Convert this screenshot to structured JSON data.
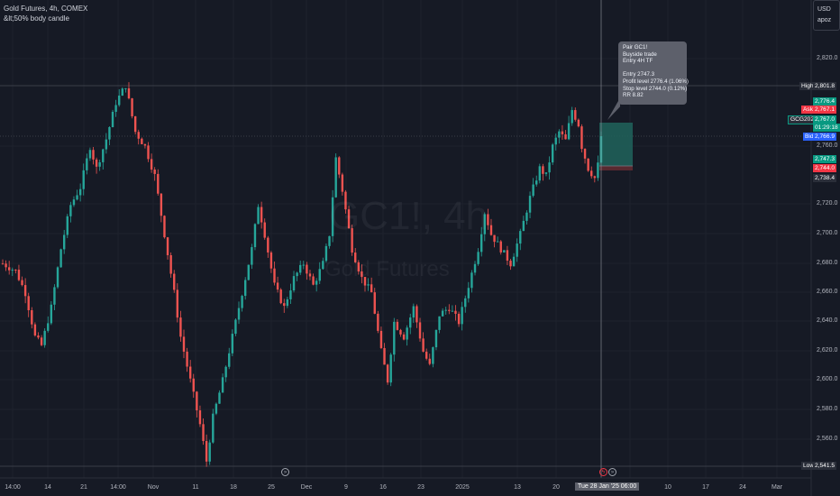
{
  "header": {
    "title": "Gold Futures, 4h, COMEX",
    "subtitle": "&lt;50% body candle"
  },
  "currency_box": {
    "currency": "USD",
    "user": "apoz"
  },
  "watermark": {
    "symbol": "GC1!, 4h",
    "name": "Gold Futures"
  },
  "trade_note": {
    "lines": [
      "Pair GC1!",
      "Buyside trade",
      "Entry 4H TF",
      "",
      "Entry 2747.3",
      "Profit level 2776.4 (1.06%)",
      "Stop level 2744.0 (0.12%)",
      "RR 8.82"
    ]
  },
  "price_axis": {
    "ticks": [
      "2,820.0",
      "2,760.0",
      "2,720.0",
      "2,700.0",
      "2,680.0",
      "2,660.0",
      "2,640.0",
      "2,620.0",
      "2,600.0",
      "2,580.0",
      "2,560.0"
    ],
    "labels": {
      "high": {
        "tag": "High",
        "value": "2,801.8"
      },
      "profit": "2,776.4",
      "ask": {
        "tag": "Ask",
        "value": "2,767.1"
      },
      "symbol": {
        "tag": "GCG2025",
        "value": "2,767.0",
        "countdown": "01:29:18"
      },
      "bid": {
        "tag": "Bid",
        "value": "2,766.9"
      },
      "entry": "2,747.3",
      "stop": "2,744.0",
      "last": "2,738.4",
      "low": {
        "tag": "Low",
        "value": "2,541.5"
      }
    }
  },
  "time_axis": {
    "ticks": [
      "14:00",
      "14",
      "21",
      "14:00",
      "Nov",
      "11",
      "18",
      "25",
      "Dec",
      "9",
      "16",
      "23",
      "2025",
      "13",
      "20",
      "6",
      "10",
      "17",
      "24",
      "Mar"
    ],
    "cursor_label": "Tue 28 Jan '25   06:00"
  },
  "colors": {
    "up": "#26a69a",
    "down": "#ef5350",
    "background": "#161a25",
    "profit_zone": "#1f5f59",
    "stop_zone": "#5c2a30"
  },
  "chart_data": {
    "type": "candlestick",
    "symbol": "GC1!",
    "timeframe": "4h",
    "ylim": [
      2541.5,
      2830
    ],
    "price_path": [
      [
        0,
        2680
      ],
      [
        4,
        2675
      ],
      [
        7,
        2660
      ],
      [
        10,
        2630
      ],
      [
        12,
        2624
      ],
      [
        15,
        2650
      ],
      [
        18,
        2690
      ],
      [
        21,
        2720
      ],
      [
        24,
        2732
      ],
      [
        27,
        2760
      ],
      [
        29,
        2745
      ],
      [
        32,
        2765
      ],
      [
        35,
        2790
      ],
      [
        38,
        2801.8
      ],
      [
        41,
        2770
      ],
      [
        44,
        2760
      ],
      [
        47,
        2740
      ],
      [
        50,
        2700
      ],
      [
        53,
        2660
      ],
      [
        55,
        2630
      ],
      [
        58,
        2600
      ],
      [
        61,
        2570
      ],
      [
        63,
        2545
      ],
      [
        65,
        2575
      ],
      [
        68,
        2600
      ],
      [
        71,
        2630
      ],
      [
        74,
        2660
      ],
      [
        77,
        2690
      ],
      [
        79,
        2720
      ],
      [
        81,
        2700
      ],
      [
        84,
        2665
      ],
      [
        87,
        2650
      ],
      [
        90,
        2670
      ],
      [
        93,
        2680
      ],
      [
        96,
        2665
      ],
      [
        99,
        2680
      ],
      [
        101,
        2700
      ],
      [
        103,
        2752
      ],
      [
        105,
        2730
      ],
      [
        108,
        2690
      ],
      [
        111,
        2670
      ],
      [
        114,
        2660
      ],
      [
        117,
        2620
      ],
      [
        119,
        2600
      ],
      [
        121,
        2640
      ],
      [
        124,
        2630
      ],
      [
        127,
        2650
      ],
      [
        130,
        2620
      ],
      [
        132,
        2610
      ],
      [
        135,
        2645
      ],
      [
        138,
        2650
      ],
      [
        141,
        2640
      ],
      [
        144,
        2665
      ],
      [
        147,
        2690
      ],
      [
        149,
        2715
      ],
      [
        151,
        2700
      ],
      [
        154,
        2690
      ],
      [
        157,
        2680
      ],
      [
        160,
        2700
      ],
      [
        163,
        2725
      ],
      [
        166,
        2745
      ],
      [
        168,
        2740
      ],
      [
        170,
        2760
      ],
      [
        172,
        2770
      ],
      [
        174,
        2764
      ],
      [
        176,
        2785
      ],
      [
        178,
        2775
      ],
      [
        179,
        2760
      ],
      [
        181,
        2745
      ],
      [
        183,
        2738.4
      ],
      [
        184,
        2747.3
      ],
      [
        185,
        2767
      ]
    ],
    "position": {
      "side": "long",
      "entry": 2747.3,
      "target": 2776.4,
      "stop": 2744.0,
      "rr": 8.82
    }
  }
}
